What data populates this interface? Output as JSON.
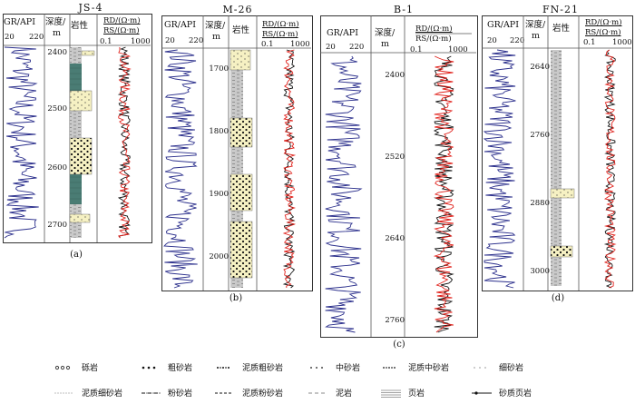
{
  "panels": [
    {
      "id": "a",
      "well": "JS-4",
      "caption": "(a)",
      "gr_label": "GR/API",
      "gr_min": "20",
      "gr_max": "220",
      "depth_label_1": "深度/",
      "depth_label_2": "m",
      "litho_label": "岩性",
      "rd_label": "RD/(Ω·m)",
      "rs_label": "RS/(Ω·m)",
      "res_min": "0.1",
      "res_max": "1000",
      "depths": [
        "2400",
        "2500",
        "2600",
        "2700"
      ]
    },
    {
      "id": "b",
      "well": "M-26",
      "caption": "(b)",
      "gr_label": "GR/API",
      "gr_min": "20",
      "gr_max": "220",
      "depth_label_1": "深度/",
      "depth_label_2": "m",
      "litho_label": "岩性",
      "rd_label": "RD/(Ω·m)",
      "rs_label": "RS/(Ω·m)",
      "res_min": "0.1",
      "res_max": "1000",
      "depths": [
        "1700",
        "1800",
        "1900",
        "2000"
      ]
    },
    {
      "id": "c",
      "well": "B-1",
      "caption": "(c)",
      "gr_label": "GR/API",
      "gr_min": "20",
      "gr_max": "220",
      "depth_label_1": "深度/",
      "depth_label_2": "m",
      "rd_label": "RD/(Ω·m)",
      "rs_label": "RS/(Ω·m)",
      "res_min": "0.1",
      "res_max": "1000",
      "depths": [
        "2400",
        "2520",
        "2640",
        "2760"
      ]
    },
    {
      "id": "d",
      "well": "FN-21",
      "caption": "(d)",
      "gr_label": "GR/API",
      "gr_min": "20",
      "gr_max": "220",
      "depth_label_1": "深度/",
      "depth_label_2": "m",
      "litho_label": "岩性",
      "rd_label": "RD/(Ω·m)",
      "rs_label": "RS/(Ω·m)",
      "res_min": "0.1",
      "res_max": "1000",
      "depths": [
        "2640",
        "2760",
        "2880",
        "3000"
      ]
    }
  ],
  "legend": [
    {
      "key": "gravel",
      "label": "砾岩"
    },
    {
      "key": "coarse",
      "label": "粗砂岩"
    },
    {
      "key": "muddy-coarse",
      "label": "泥质粗砂岩"
    },
    {
      "key": "medium",
      "label": "中砂岩"
    },
    {
      "key": "muddy-medium",
      "label": "泥质中砂岩"
    },
    {
      "key": "fine",
      "label": "细砂岩"
    },
    {
      "key": "muddy-fine",
      "label": "泥质细砂岩"
    },
    {
      "key": "silt",
      "label": "粉砂岩"
    },
    {
      "key": "muddy-silt",
      "label": "泥质粉砂岩"
    },
    {
      "key": "mudstone",
      "label": "泥岩"
    },
    {
      "key": "shale",
      "label": "页岩"
    },
    {
      "key": "sandy-shale",
      "label": "砂质页岩"
    }
  ],
  "colors": {
    "gr": "#2b2f8c",
    "rd": "#111111",
    "rs": "#e0201a",
    "sand": "#f6f1c3",
    "shale": "#4a7c74",
    "mud": "#bdbdbd"
  }
}
